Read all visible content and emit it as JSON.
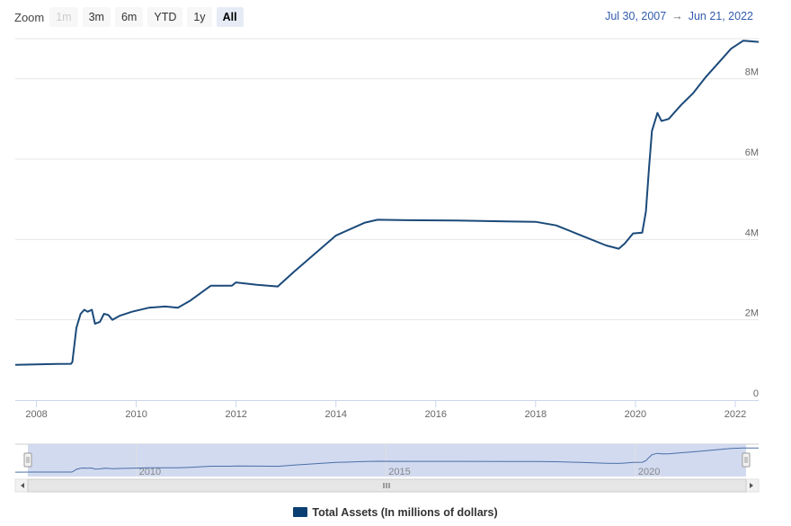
{
  "zoom": {
    "label": "Zoom",
    "buttons": [
      {
        "label": "1m",
        "state": "disabled"
      },
      {
        "label": "3m",
        "state": "normal"
      },
      {
        "label": "6m",
        "state": "normal"
      },
      {
        "label": "YTD",
        "state": "normal"
      },
      {
        "label": "1y",
        "state": "normal"
      },
      {
        "label": "All",
        "state": "active"
      }
    ]
  },
  "range": {
    "from": "Jul 30, 2007",
    "arrow": "→",
    "to": "Jun 21, 2022"
  },
  "legend": {
    "label": "Total Assets (In millions of dollars)",
    "color": "#0b3f73"
  },
  "colors": {
    "line": "#1b4a7a",
    "grid": "#e6e6e6",
    "navigator_fill": "#cdd6ee",
    "navigator_line": "#4a6fa5"
  },
  "chart_data": {
    "type": "line",
    "title": "",
    "xlabel": "",
    "ylabel": "",
    "x_range": [
      "2007-07-30",
      "2022-06-21"
    ],
    "ylim": [
      0,
      9000000
    ],
    "x_ticks": [
      "2008",
      "2010",
      "2012",
      "2014",
      "2016",
      "2018",
      "2020",
      "2022"
    ],
    "y_ticks": [
      {
        "value": 0,
        "label": "0"
      },
      {
        "value": 2000000,
        "label": "2M"
      },
      {
        "value": 4000000,
        "label": "4M"
      },
      {
        "value": 6000000,
        "label": "6M"
      },
      {
        "value": 8000000,
        "label": "8M"
      }
    ],
    "grid": true,
    "legend_position": "bottom-center",
    "navigator_labels": [
      "2010",
      "2015",
      "2020"
    ],
    "series": [
      {
        "name": "Total Assets (In millions of dollars)",
        "points": [
          [
            "2007-07-30",
            880000
          ],
          [
            "2008-01-01",
            890000
          ],
          [
            "2008-06-01",
            900000
          ],
          [
            "2008-09-10",
            905000
          ],
          [
            "2008-09-20",
            950000
          ],
          [
            "2008-10-20",
            1800000
          ],
          [
            "2008-11-20",
            2150000
          ],
          [
            "2008-12-17",
            2250000
          ],
          [
            "2009-01-10",
            2200000
          ],
          [
            "2009-02-10",
            2250000
          ],
          [
            "2009-03-05",
            1900000
          ],
          [
            "2009-04-10",
            1950000
          ],
          [
            "2009-05-10",
            2150000
          ],
          [
            "2009-06-10",
            2120000
          ],
          [
            "2009-07-10",
            2000000
          ],
          [
            "2009-09-01",
            2100000
          ],
          [
            "2009-12-01",
            2200000
          ],
          [
            "2010-04-01",
            2300000
          ],
          [
            "2010-08-01",
            2330000
          ],
          [
            "2010-11-01",
            2300000
          ],
          [
            "2011-02-01",
            2480000
          ],
          [
            "2011-06-30",
            2850000
          ],
          [
            "2011-12-01",
            2850000
          ],
          [
            "2011-12-31",
            2930000
          ],
          [
            "2012-06-01",
            2870000
          ],
          [
            "2012-11-01",
            2830000
          ],
          [
            "2013-03-01",
            3200000
          ],
          [
            "2013-08-01",
            3650000
          ],
          [
            "2014-01-01",
            4100000
          ],
          [
            "2014-08-01",
            4420000
          ],
          [
            "2014-11-01",
            4490000
          ],
          [
            "2015-06-01",
            4480000
          ],
          [
            "2016-06-01",
            4470000
          ],
          [
            "2017-06-01",
            4450000
          ],
          [
            "2018-01-01",
            4440000
          ],
          [
            "2018-06-01",
            4350000
          ],
          [
            "2018-12-01",
            4100000
          ],
          [
            "2019-06-01",
            3850000
          ],
          [
            "2019-09-01",
            3770000
          ],
          [
            "2019-10-15",
            3900000
          ],
          [
            "2019-12-15",
            4150000
          ],
          [
            "2020-02-20",
            4170000
          ],
          [
            "2020-03-18",
            4700000
          ],
          [
            "2020-04-10",
            5800000
          ],
          [
            "2020-05-01",
            6700000
          ],
          [
            "2020-06-10",
            7150000
          ],
          [
            "2020-07-10",
            6950000
          ],
          [
            "2020-09-01",
            7000000
          ],
          [
            "2020-12-01",
            7350000
          ],
          [
            "2021-03-01",
            7650000
          ],
          [
            "2021-06-01",
            8050000
          ],
          [
            "2021-09-01",
            8400000
          ],
          [
            "2021-12-01",
            8750000
          ],
          [
            "2022-03-01",
            8950000
          ],
          [
            "2022-06-21",
            8920000
          ]
        ]
      }
    ]
  }
}
